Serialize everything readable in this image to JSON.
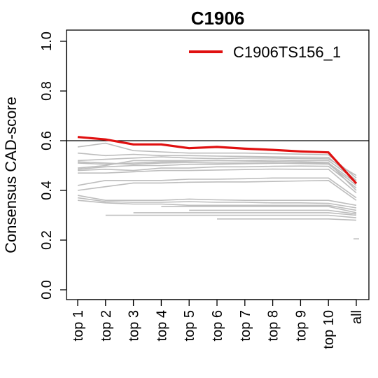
{
  "chart_data": {
    "type": "line",
    "title": "C1906",
    "xlabel": "",
    "ylabel": "Consensus CAD-score",
    "categories": [
      "top 1",
      "top 2",
      "top 3",
      "top 4",
      "top 5",
      "top 6",
      "top 7",
      "top 8",
      "top 9",
      "top 10",
      "all"
    ],
    "ylim": [
      0.0,
      1.0
    ],
    "yticks": [
      "0.0",
      "0.2",
      "0.4",
      "0.6",
      "0.8",
      "1.0"
    ],
    "reference_line": 0.6,
    "legend_position": "top-right",
    "highlight_color": "#e01010",
    "background_color": "#bdbdbd",
    "highlight": {
      "name": "C1906TS156_1",
      "values": [
        0.615,
        0.605,
        0.585,
        0.585,
        0.57,
        0.575,
        0.568,
        0.563,
        0.557,
        0.553,
        0.428
      ]
    },
    "background_series": [
      [
        0.575,
        0.59,
        0.56,
        0.555,
        0.55,
        0.55,
        0.55,
        0.548,
        0.546,
        0.543,
        0.45
      ],
      [
        0.55,
        0.54,
        0.545,
        0.54,
        0.54,
        0.538,
        0.537,
        0.535,
        0.534,
        0.533,
        0.44
      ],
      [
        0.52,
        0.525,
        0.53,
        0.535,
        0.53,
        0.528,
        0.53,
        0.53,
        0.528,
        0.527,
        0.46
      ],
      [
        0.515,
        0.51,
        0.505,
        0.51,
        0.512,
        0.51,
        0.51,
        0.51,
        0.508,
        0.506,
        0.42
      ],
      [
        0.49,
        0.5,
        0.52,
        0.52,
        0.52,
        0.52,
        0.518,
        0.516,
        0.515,
        0.512,
        0.4
      ],
      [
        0.48,
        0.485,
        0.48,
        0.49,
        0.49,
        0.495,
        0.495,
        0.497,
        0.498,
        0.497,
        0.41
      ],
      [
        0.485,
        0.495,
        0.5,
        0.5,
        0.505,
        0.505,
        0.507,
        0.509,
        0.51,
        0.51,
        0.43
      ],
      [
        0.51,
        0.505,
        0.51,
        0.515,
        0.518,
        0.52,
        0.52,
        0.522,
        0.52,
        0.52,
        0.44
      ],
      [
        0.47,
        0.47,
        0.475,
        0.48,
        0.48,
        0.482,
        0.484,
        0.486,
        0.485,
        0.485,
        0.39
      ],
      [
        0.42,
        0.44,
        0.44,
        0.44,
        0.445,
        0.445,
        0.447,
        0.45,
        0.45,
        0.45,
        0.37
      ],
      [
        0.4,
        0.415,
        0.43,
        0.43,
        0.433,
        0.434,
        0.434,
        0.436,
        0.438,
        0.44,
        0.36
      ],
      [
        0.38,
        0.36,
        0.36,
        0.36,
        0.365,
        0.362,
        0.36,
        0.36,
        0.36,
        0.36,
        0.34
      ],
      [
        0.37,
        0.355,
        0.352,
        0.352,
        0.355,
        0.352,
        0.352,
        0.35,
        0.35,
        0.348,
        0.33
      ],
      [
        0.36,
        0.35,
        0.345,
        0.345,
        0.34,
        0.34,
        0.34,
        0.34,
        0.34,
        0.34,
        0.32
      ],
      [
        null,
        0.3,
        0.3,
        0.3,
        0.3,
        0.3,
        0.3,
        0.3,
        0.3,
        0.3,
        0.29
      ],
      [
        null,
        null,
        0.31,
        0.31,
        0.31,
        0.31,
        0.31,
        0.31,
        0.31,
        0.31,
        0.3
      ],
      [
        null,
        null,
        null,
        0.335,
        0.335,
        0.335,
        0.335,
        0.335,
        0.335,
        0.335,
        0.31
      ],
      [
        null,
        null,
        null,
        null,
        0.32,
        0.32,
        0.32,
        0.32,
        0.32,
        0.32,
        0.305
      ],
      [
        null,
        null,
        null,
        null,
        null,
        0.285,
        0.285,
        0.285,
        0.285,
        0.285,
        0.28
      ],
      [
        null,
        null,
        null,
        null,
        null,
        null,
        null,
        null,
        null,
        null,
        0.205
      ]
    ]
  }
}
